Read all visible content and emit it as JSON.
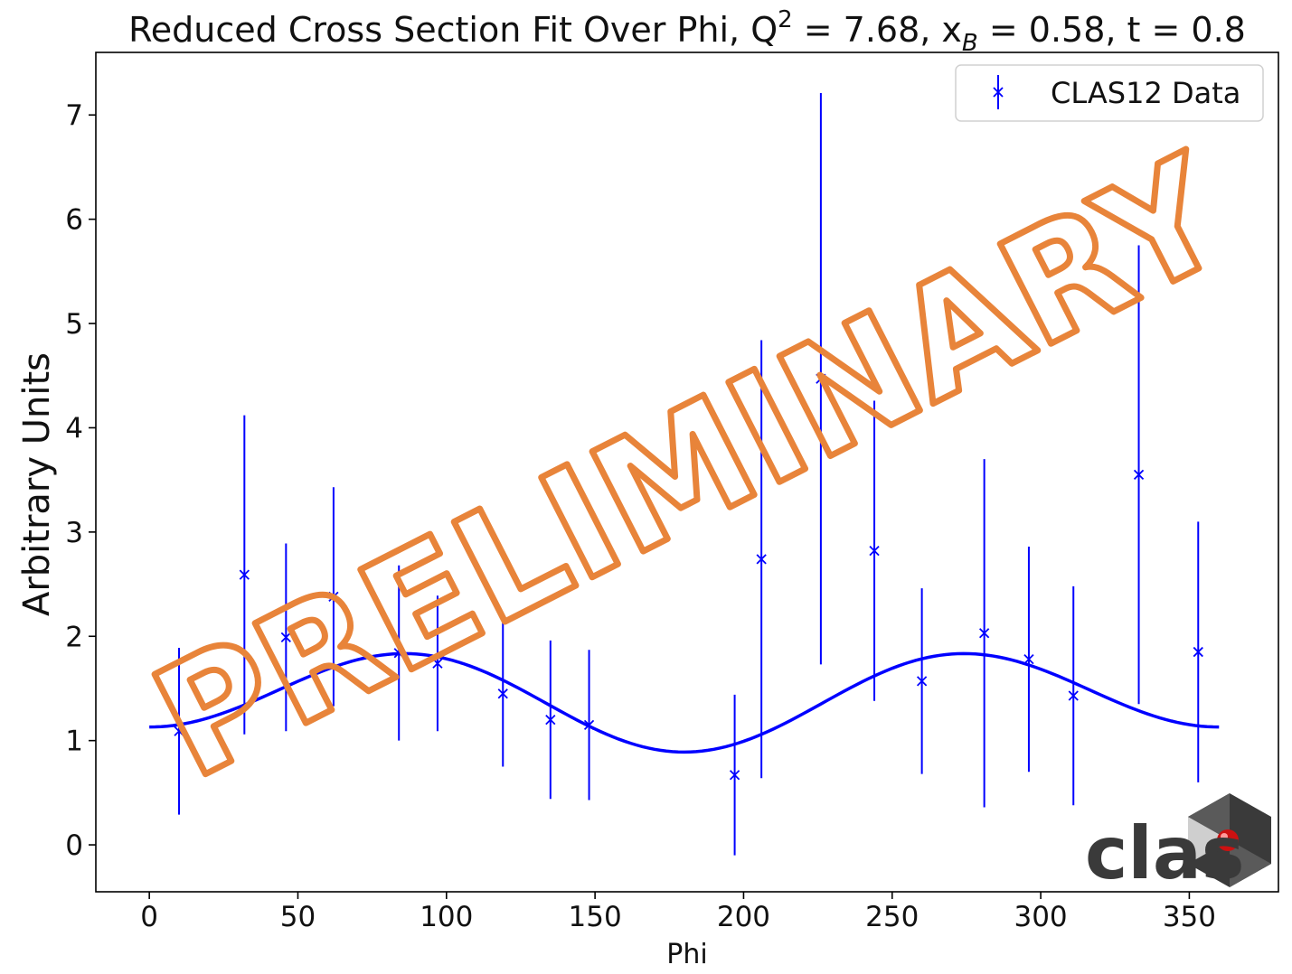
{
  "chart_data": {
    "type": "scatter",
    "title": "Reduced Cross Section Fit Over Phi, Q",
    "title_q_superscript": "2",
    "title_q_value": " = 7.68, x",
    "title_xb_subscript": "B",
    "title_rest": " = 0.58, t = 0.8",
    "xlabel": "Phi",
    "ylabel": "Arbitrary Units",
    "xlim": [
      -18,
      380
    ],
    "ylim": [
      -0.45,
      7.6
    ],
    "xticks": [
      0,
      50,
      100,
      150,
      200,
      250,
      300,
      350
    ],
    "yticks": [
      0,
      1,
      2,
      3,
      4,
      5,
      6,
      7
    ],
    "grid": false,
    "legend_position": "top-right",
    "series": [
      {
        "name": "CLAS12 Data",
        "kind": "errorbar",
        "marker": "x",
        "color": "#0000ff",
        "x": [
          10,
          32,
          46,
          62,
          84,
          97,
          119,
          135,
          148,
          197,
          206,
          226,
          244,
          260,
          281,
          296,
          311,
          333,
          353
        ],
        "y": [
          1.09,
          2.59,
          1.99,
          2.38,
          1.84,
          1.74,
          1.45,
          1.2,
          1.15,
          0.67,
          2.74,
          4.47,
          2.82,
          1.57,
          2.03,
          1.78,
          1.43,
          3.55,
          1.85
        ],
        "yerr": [
          0.8,
          1.53,
          0.9,
          1.05,
          0.84,
          0.65,
          0.7,
          0.76,
          0.72,
          0.77,
          2.1,
          2.74,
          1.44,
          0.89,
          1.67,
          1.08,
          1.05,
          2.2,
          1.25
        ]
      },
      {
        "kind": "fit_line",
        "color": "#0000ff",
        "model": "A + B*cos(phi) + C*cos(2*phi)",
        "params": {
          "A": 1.42,
          "B": 0.12,
          "C": -0.41
        },
        "x_range": [
          0,
          360
        ]
      }
    ],
    "watermark": "PRELIMINARY",
    "watermark_color": "#e8843a",
    "logo_text": "clas"
  }
}
